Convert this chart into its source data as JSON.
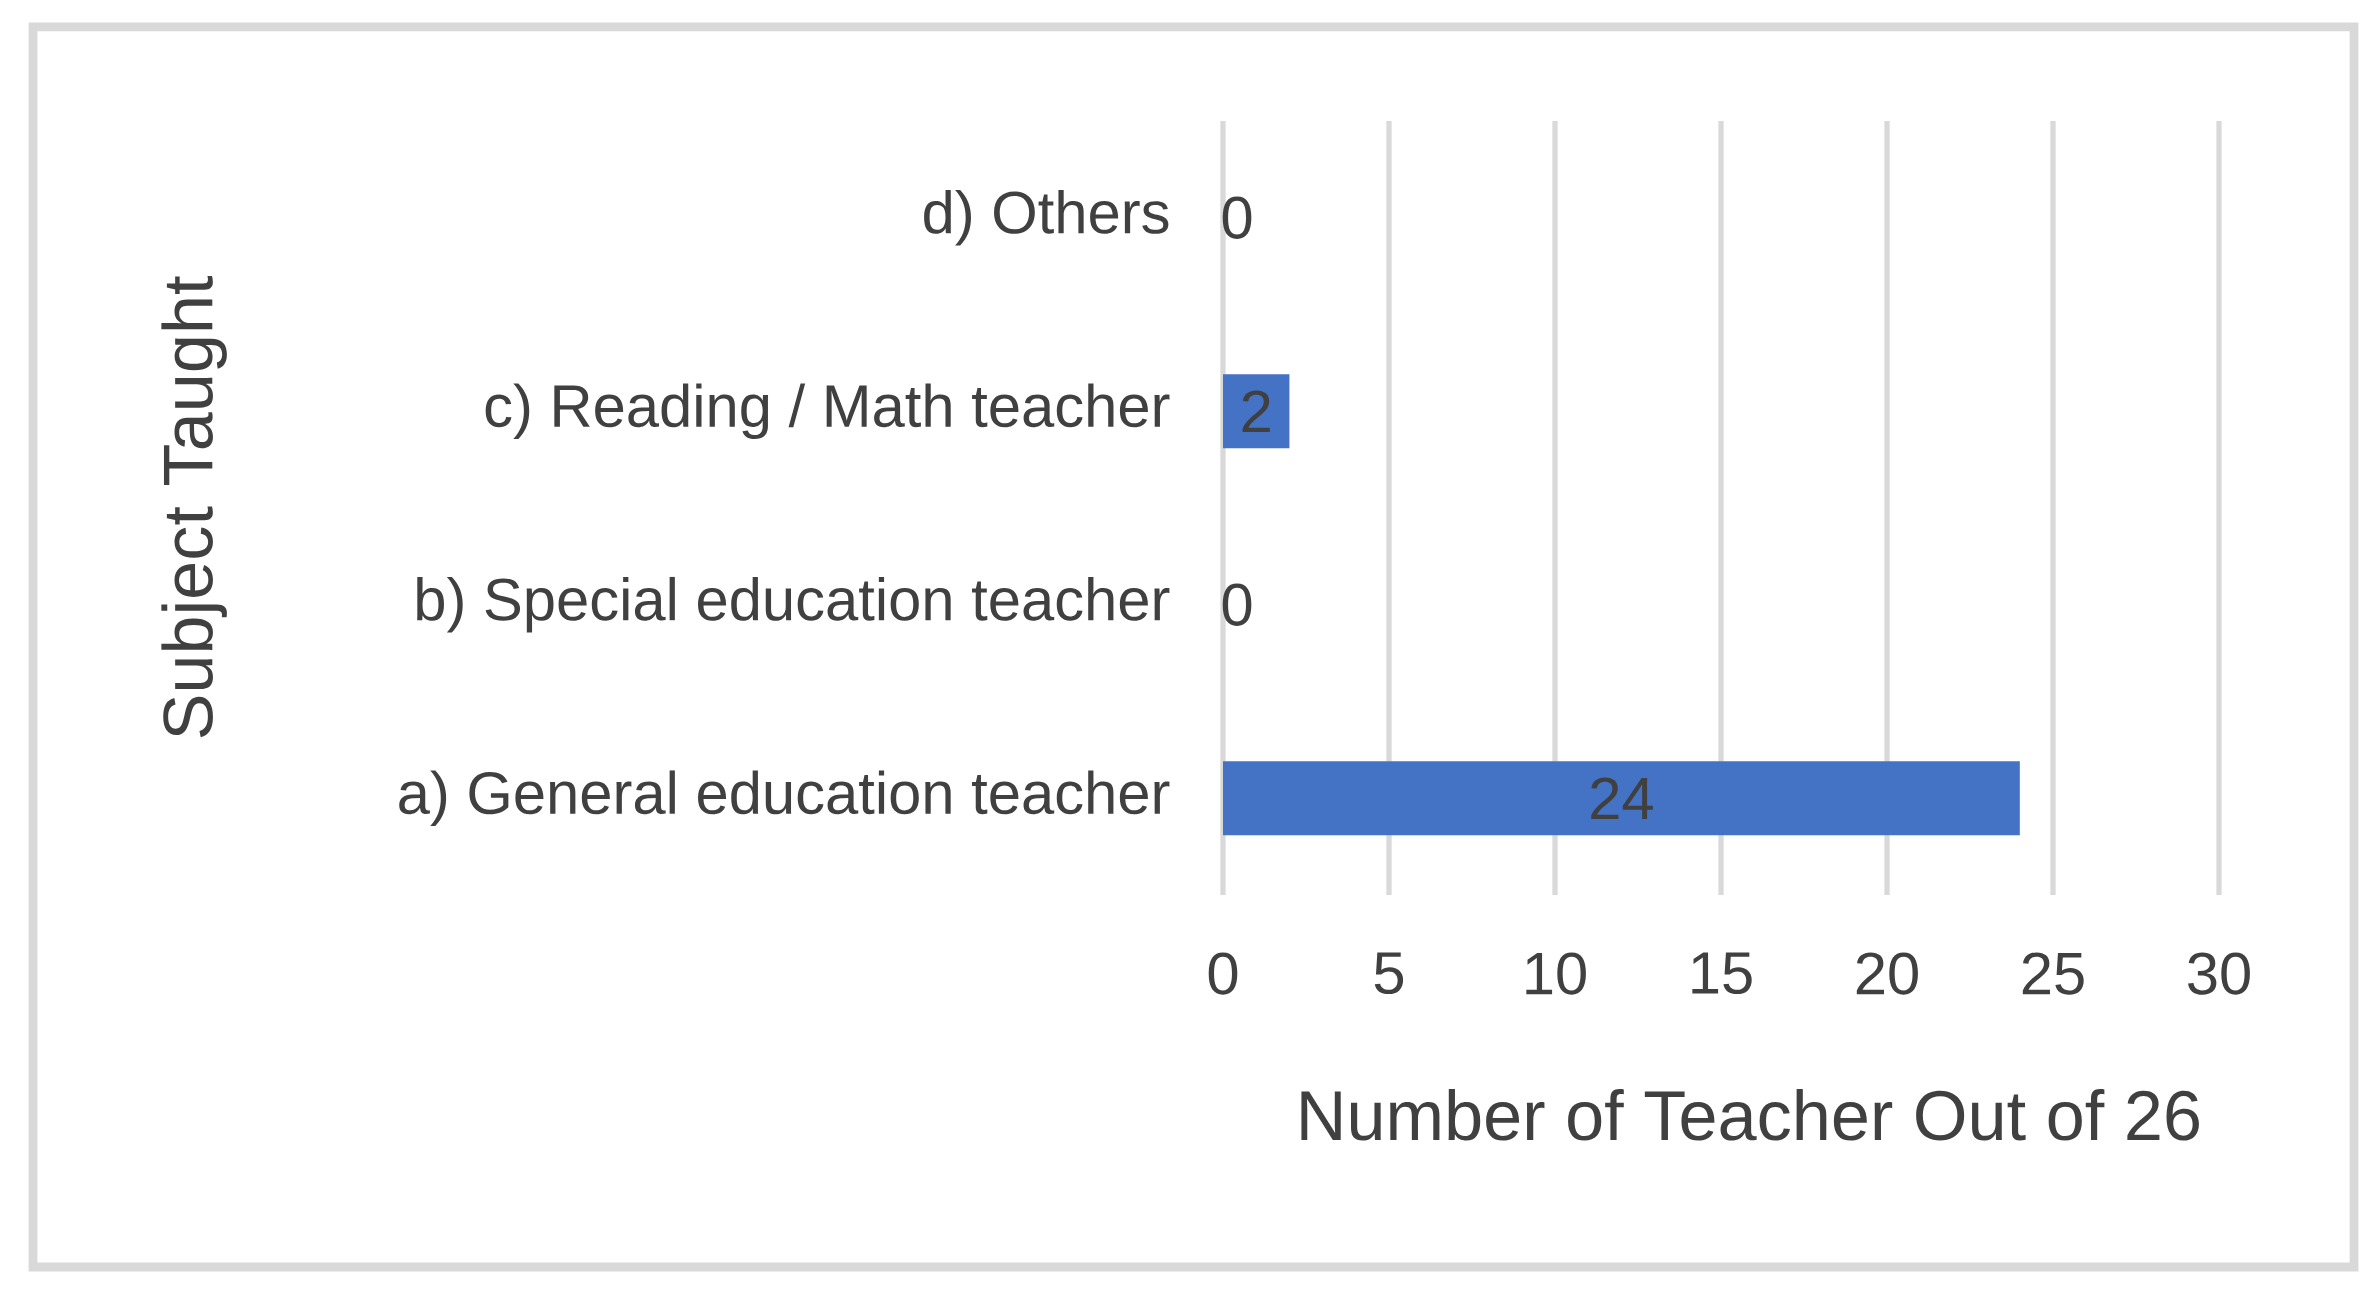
{
  "chart_data": {
    "type": "bar",
    "orientation": "horizontal",
    "categories": [
      "d) Others",
      "c) Reading / Math teacher",
      "b) Special education teacher",
      "a) General education teacher"
    ],
    "values": [
      0,
      2,
      0,
      24
    ],
    "color": "#4472c4",
    "xlim": [
      0,
      30
    ],
    "xticks": [
      0,
      5,
      10,
      15,
      20,
      25,
      30
    ],
    "grid": "x",
    "data_labels": true,
    "xlabel": "Number of Teacher Out of 26",
    "ylabel": "Subject Taught"
  }
}
